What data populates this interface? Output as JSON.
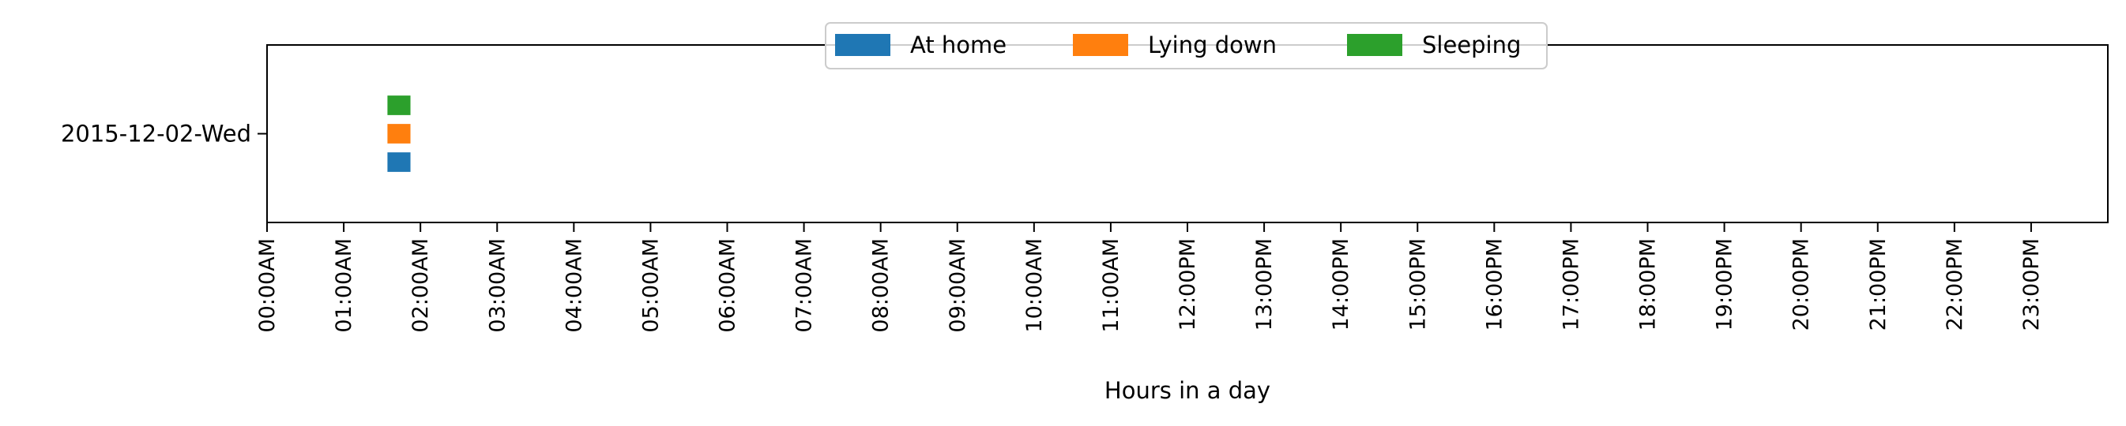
{
  "chart_data": {
    "type": "bar",
    "orientation": "horizontal",
    "xlabel": "Hours in a day",
    "ylabel": "",
    "xlim": [
      0,
      24
    ],
    "ylim": [
      -0.5,
      0.5
    ],
    "x_ticks": [
      {
        "value": 0,
        "label": "00:00AM"
      },
      {
        "value": 1,
        "label": "01:00AM"
      },
      {
        "value": 2,
        "label": "02:00AM"
      },
      {
        "value": 3,
        "label": "03:00AM"
      },
      {
        "value": 4,
        "label": "04:00AM"
      },
      {
        "value": 5,
        "label": "05:00AM"
      },
      {
        "value": 6,
        "label": "06:00AM"
      },
      {
        "value": 7,
        "label": "07:00AM"
      },
      {
        "value": 8,
        "label": "08:00AM"
      },
      {
        "value": 9,
        "label": "09:00AM"
      },
      {
        "value": 10,
        "label": "10:00AM"
      },
      {
        "value": 11,
        "label": "11:00AM"
      },
      {
        "value": 12,
        "label": "12:00PM"
      },
      {
        "value": 13,
        "label": "13:00PM"
      },
      {
        "value": 14,
        "label": "14:00PM"
      },
      {
        "value": 15,
        "label": "15:00PM"
      },
      {
        "value": 16,
        "label": "16:00PM"
      },
      {
        "value": 17,
        "label": "17:00PM"
      },
      {
        "value": 18,
        "label": "18:00PM"
      },
      {
        "value": 19,
        "label": "19:00PM"
      },
      {
        "value": 20,
        "label": "20:00PM"
      },
      {
        "value": 21,
        "label": "21:00PM"
      },
      {
        "value": 22,
        "label": "22:00PM"
      },
      {
        "value": 23,
        "label": "23:00PM"
      }
    ],
    "categories": [
      "2015-12-02-Wed"
    ],
    "grid": false,
    "legend_position": "top-center",
    "series": [
      {
        "name": "At home",
        "color": "#1f77b4",
        "intervals": [
          {
            "category": "2015-12-02-Wed",
            "start": 1.57,
            "end": 1.87,
            "lane": -0.16
          }
        ]
      },
      {
        "name": "Lying down",
        "color": "#ff7f0e",
        "intervals": [
          {
            "category": "2015-12-02-Wed",
            "start": 1.57,
            "end": 1.87,
            "lane": 0.0
          }
        ]
      },
      {
        "name": "Sleeping",
        "color": "#2ca02c",
        "intervals": [
          {
            "category": "2015-12-02-Wed",
            "start": 1.57,
            "end": 1.87,
            "lane": 0.16
          }
        ]
      }
    ]
  }
}
